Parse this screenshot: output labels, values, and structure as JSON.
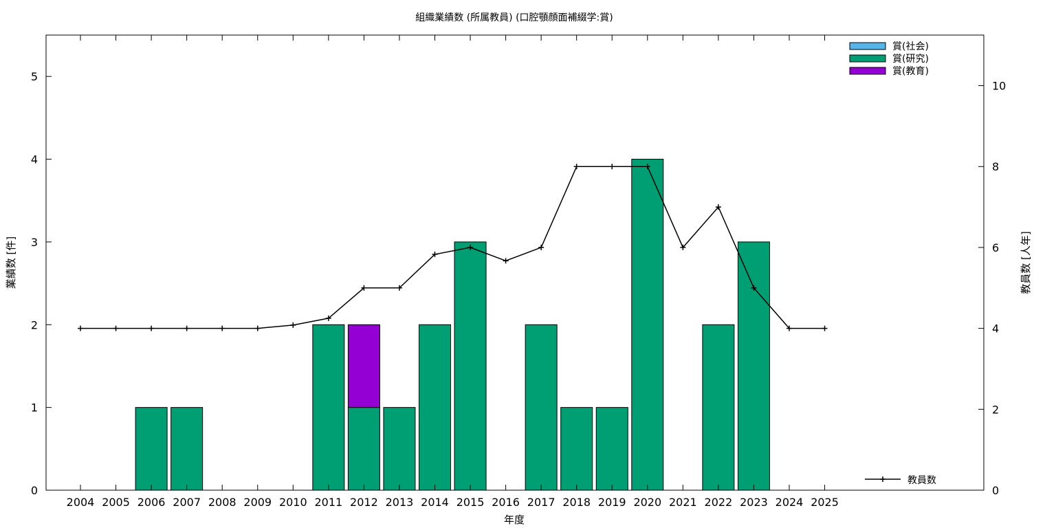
{
  "chart_data": {
    "type": "bar",
    "title": "組織業績数 (所属教員) (口腔顎顔面補綴学:賞)",
    "xlabel": "年度",
    "ylabel": "業績数 [件]",
    "y2label": "教員数 [人年]",
    "categories": [
      "2004",
      "2005",
      "2006",
      "2007",
      "2008",
      "2009",
      "2010",
      "2011",
      "2012",
      "2013",
      "2014",
      "2015",
      "2016",
      "2017",
      "2018",
      "2019",
      "2020",
      "2021",
      "2022",
      "2023",
      "2024",
      "2025"
    ],
    "ylim": [
      0,
      5.5
    ],
    "yticks": [
      "0",
      "1",
      "2",
      "3",
      "4",
      "5"
    ],
    "y2lim": [
      0,
      11.25
    ],
    "y2ticks": [
      "0",
      "2",
      "4",
      "6",
      "8",
      "10"
    ],
    "stacked": true,
    "series": [
      {
        "name": "賞(社会)",
        "color": "#56b4e9",
        "values": [
          0,
          0,
          0,
          0,
          0,
          0,
          0,
          0,
          0,
          0,
          0,
          0,
          0,
          0,
          0,
          0,
          0,
          0,
          0,
          0,
          0,
          0
        ]
      },
      {
        "name": "賞(研究)",
        "color": "#009e73",
        "values": [
          0,
          0,
          1,
          1,
          0,
          0,
          0,
          2,
          1,
          1,
          2,
          3,
          0,
          2,
          1,
          1,
          4,
          0,
          2,
          3,
          0,
          0
        ]
      },
      {
        "name": "賞(教育)",
        "color": "#9400d3",
        "values": [
          0,
          0,
          0,
          0,
          0,
          0,
          0,
          0,
          1,
          0,
          0,
          0,
          0,
          0,
          0,
          0,
          0,
          0,
          0,
          0,
          0,
          0
        ]
      }
    ],
    "line_series": {
      "name": "教員数",
      "color": "#000000",
      "axis": "y2",
      "values": [
        4,
        4,
        4,
        4,
        4,
        4,
        4.08,
        4.25,
        5,
        5,
        5.83,
        6,
        5.67,
        6,
        8,
        8,
        8,
        6,
        7,
        5,
        4,
        4
      ]
    },
    "legend_position": "top-right"
  }
}
